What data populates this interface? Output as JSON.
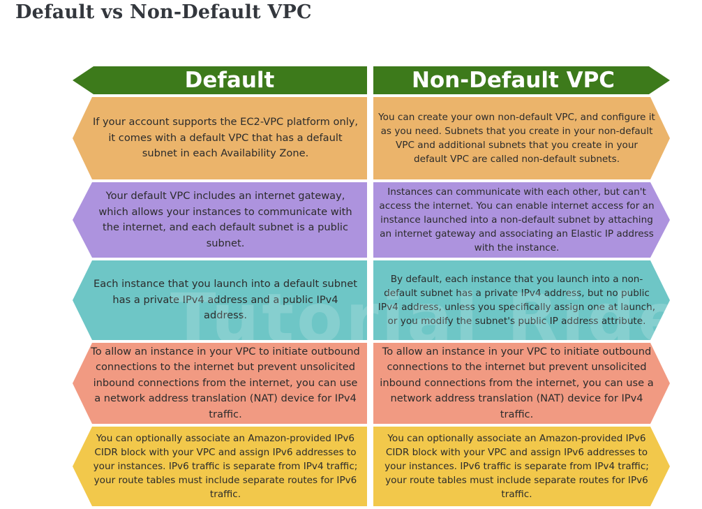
{
  "title": "Default vs Non-Default VPC",
  "headers": {
    "left": "Default",
    "right": "Non-Default VPC"
  },
  "rows": [
    {
      "left": "If your account supports the EC2-VPC platform only, it comes with a default VPC that has a default subnet in each Availability Zone.",
      "right": "You can create your own non-default VPC, and configure it as you need. Subnets that you create in your non-default VPC and additional subnets that you create in your default VPC are called non-default subnets."
    },
    {
      "left": "Your default VPC includes an internet gateway, which allows your instances to communicate with the internet, and each default subnet is a public subnet.",
      "right": "Instances can communicate with each other, but can't access the internet. You can enable internet access for an instance launched into a non-default subnet by attaching an internet gateway and associating an Elastic IP address with the instance."
    },
    {
      "left": "Each instance that you launch into a default subnet has a private IPv4 address and a public IPv4 address.",
      "right": "By default, each instance that you launch into a non-default subnet has a private IPv4 address, but no public IPv4 address, unless you specifically assign one at launch, or you modify the subnet's public IP address attribute."
    },
    {
      "left": "To allow an instance in your VPC to initiate outbound connections to the internet but prevent unsolicited inbound connections from the internet, you can use a network address translation (NAT) device for IPv4 traffic.",
      "right": "To allow an instance in your VPC to initiate outbound connections to the internet but prevent unsolicited inbound connections from the internet, you can use a network address translation (NAT) device for IPv4 traffic."
    },
    {
      "left": "You can optionally associate an Amazon-provided IPv6 CIDR block with your VPC and assign IPv6 addresses to your instances. IPv6 traffic is separate from IPv4 traffic; your route tables must include separate routes for IPv6 traffic.",
      "right": "You can optionally associate an Amazon-provided IPv6 CIDR block with your VPC and assign IPv6 addresses to your instances. IPv6 traffic is separate from IPv4 traffic; your route tables must include separate routes for IPv6 traffic."
    }
  ],
  "watermark": "Tutorial Ride",
  "colors": {
    "header_green": "#3d7a1b",
    "row1_orange": "#ebb46b",
    "row2_purple": "#ad93de",
    "row3_teal": "#6ec6c6",
    "row4_salmon": "#f19a82",
    "row5_yellow": "#f2c84b"
  }
}
